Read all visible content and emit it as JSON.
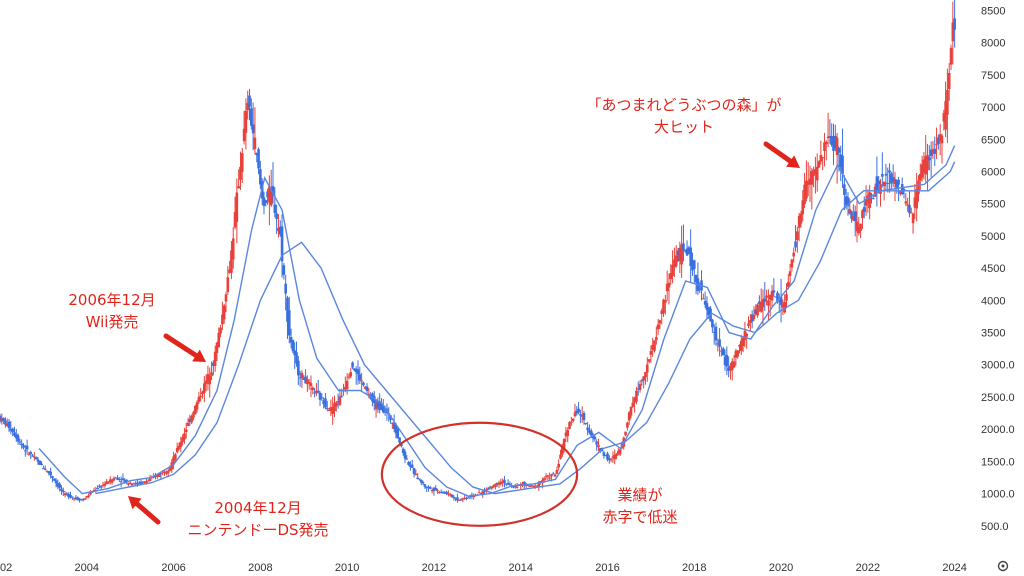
{
  "chart_data": {
    "type": "candlestick",
    "title": "",
    "xlabel": "",
    "ylabel": "",
    "x_ticks": [
      "02",
      "2004",
      "2006",
      "2008",
      "2010",
      "2012",
      "2014",
      "2016",
      "2018",
      "2020",
      "2022",
      "2024"
    ],
    "y_ticks": [
      "500.0",
      "1000.0",
      "1500.0",
      "2000.0",
      "2500.0",
      "3000.0",
      "3500",
      "4000",
      "4500",
      "5000",
      "5500",
      "6000",
      "6500",
      "7000",
      "7500",
      "8000",
      "8500"
    ],
    "ylim": [
      0,
      8600
    ],
    "xlim": [
      2002.0,
      2024.4
    ],
    "grid": false,
    "colors": {
      "up": "#e8413b",
      "down": "#3a6fe0",
      "ma": "#5b86e0",
      "annotation": "#e0241b"
    },
    "close_path": [
      [
        2002.0,
        2200
      ],
      [
        2002.3,
        2000
      ],
      [
        2002.6,
        1700
      ],
      [
        2002.9,
        1500
      ],
      [
        2003.2,
        1300
      ],
      [
        2003.5,
        1000
      ],
      [
        2003.75,
        930
      ],
      [
        2003.95,
        900
      ],
      [
        2004.2,
        1050
      ],
      [
        2004.45,
        1150
      ],
      [
        2004.7,
        1250
      ],
      [
        2004.95,
        1180
      ],
      [
        2005.2,
        1150
      ],
      [
        2005.45,
        1200
      ],
      [
        2005.7,
        1300
      ],
      [
        2005.95,
        1400
      ],
      [
        2006.2,
        1800
      ],
      [
        2006.45,
        2200
      ],
      [
        2006.7,
        2600
      ],
      [
        2006.95,
        3000
      ],
      [
        2007.15,
        3700
      ],
      [
        2007.35,
        4600
      ],
      [
        2007.55,
        5900
      ],
      [
        2007.75,
        7100
      ],
      [
        2007.9,
        6500
      ],
      [
        2008.1,
        5500
      ],
      [
        2008.3,
        5700
      ],
      [
        2008.5,
        5000
      ],
      [
        2008.7,
        3500
      ],
      [
        2008.9,
        2900
      ],
      [
        2009.15,
        2700
      ],
      [
        2009.4,
        2500
      ],
      [
        2009.65,
        2300
      ],
      [
        2009.9,
        2500
      ],
      [
        2010.15,
        3000
      ],
      [
        2010.4,
        2700
      ],
      [
        2010.65,
        2400
      ],
      [
        2010.9,
        2300
      ],
      [
        2011.1,
        2100
      ],
      [
        2011.35,
        1600
      ],
      [
        2011.6,
        1300
      ],
      [
        2011.85,
        1100
      ],
      [
        2012.1,
        1050
      ],
      [
        2012.35,
        1000
      ],
      [
        2012.6,
        900
      ],
      [
        2012.85,
        950
      ],
      [
        2013.1,
        1000
      ],
      [
        2013.35,
        1100
      ],
      [
        2013.6,
        1200
      ],
      [
        2013.85,
        1100
      ],
      [
        2014.1,
        1150
      ],
      [
        2014.35,
        1100
      ],
      [
        2014.6,
        1250
      ],
      [
        2014.85,
        1300
      ],
      [
        2015.1,
        2000
      ],
      [
        2015.35,
        2300
      ],
      [
        2015.6,
        2000
      ],
      [
        2015.85,
        1700
      ],
      [
        2016.1,
        1500
      ],
      [
        2016.35,
        1700
      ],
      [
        2016.6,
        2400
      ],
      [
        2016.85,
        2800
      ],
      [
        2017.1,
        3300
      ],
      [
        2017.35,
        4000
      ],
      [
        2017.6,
        4700
      ],
      [
        2017.85,
        4800
      ],
      [
        2018.1,
        4300
      ],
      [
        2018.35,
        3800
      ],
      [
        2018.6,
        3300
      ],
      [
        2018.85,
        2900
      ],
      [
        2019.1,
        3300
      ],
      [
        2019.35,
        3700
      ],
      [
        2019.6,
        4000
      ],
      [
        2019.85,
        4100
      ],
      [
        2020.1,
        3900
      ],
      [
        2020.35,
        4800
      ],
      [
        2020.6,
        5800
      ],
      [
        2020.85,
        6000
      ],
      [
        2021.1,
        6500
      ],
      [
        2021.35,
        6400
      ],
      [
        2021.55,
        5500
      ],
      [
        2021.8,
        5100
      ],
      [
        2022.05,
        5600
      ],
      [
        2022.3,
        5800
      ],
      [
        2022.55,
        5900
      ],
      [
        2022.8,
        5700
      ],
      [
        2023.05,
        5300
      ],
      [
        2023.3,
        6100
      ],
      [
        2023.55,
        6300
      ],
      [
        2023.75,
        6600
      ],
      [
        2023.9,
        7300
      ],
      [
        2024.0,
        8200
      ]
    ],
    "moving_average_short": [
      [
        2002.9,
        1700
      ],
      [
        2003.5,
        1250
      ],
      [
        2003.9,
        1000
      ],
      [
        2004.5,
        1080
      ],
      [
        2005.0,
        1200
      ],
      [
        2005.5,
        1250
      ],
      [
        2006.0,
        1450
      ],
      [
        2006.5,
        1900
      ],
      [
        2007.0,
        2600
      ],
      [
        2007.4,
        3700
      ],
      [
        2007.8,
        5100
      ],
      [
        2008.1,
        5900
      ],
      [
        2008.5,
        5400
      ],
      [
        2008.9,
        4000
      ],
      [
        2009.3,
        3100
      ],
      [
        2009.8,
        2600
      ],
      [
        2010.3,
        2600
      ],
      [
        2010.8,
        2400
      ],
      [
        2011.3,
        1900
      ],
      [
        2011.8,
        1400
      ],
      [
        2012.3,
        1100
      ],
      [
        2012.8,
        960
      ],
      [
        2013.3,
        1000
      ],
      [
        2013.8,
        1120
      ],
      [
        2014.3,
        1150
      ],
      [
        2014.8,
        1220
      ],
      [
        2015.3,
        1750
      ],
      [
        2015.8,
        1950
      ],
      [
        2016.3,
        1700
      ],
      [
        2016.8,
        2300
      ],
      [
        2017.3,
        3400
      ],
      [
        2017.8,
        4300
      ],
      [
        2018.3,
        4200
      ],
      [
        2018.8,
        3500
      ],
      [
        2019.3,
        3400
      ],
      [
        2019.8,
        3900
      ],
      [
        2020.3,
        4300
      ],
      [
        2020.8,
        5400
      ],
      [
        2021.3,
        6100
      ],
      [
        2021.8,
        5500
      ],
      [
        2022.3,
        5700
      ],
      [
        2022.8,
        5750
      ],
      [
        2023.3,
        5800
      ],
      [
        2023.8,
        6100
      ],
      [
        2024.0,
        6400
      ]
    ],
    "moving_average_long": [
      [
        2004.2,
        1000
      ],
      [
        2004.8,
        1080
      ],
      [
        2005.5,
        1170
      ],
      [
        2006.0,
        1300
      ],
      [
        2006.5,
        1600
      ],
      [
        2007.0,
        2100
      ],
      [
        2007.5,
        3000
      ],
      [
        2008.0,
        4000
      ],
      [
        2008.5,
        4700
      ],
      [
        2008.95,
        4900
      ],
      [
        2009.4,
        4500
      ],
      [
        2009.9,
        3700
      ],
      [
        2010.4,
        3000
      ],
      [
        2010.9,
        2600
      ],
      [
        2011.4,
        2200
      ],
      [
        2011.9,
        1800
      ],
      [
        2012.4,
        1400
      ],
      [
        2012.9,
        1100
      ],
      [
        2013.4,
        1000
      ],
      [
        2013.9,
        1050
      ],
      [
        2014.4,
        1100
      ],
      [
        2014.9,
        1150
      ],
      [
        2015.4,
        1400
      ],
      [
        2015.9,
        1700
      ],
      [
        2016.4,
        1800
      ],
      [
        2016.9,
        2100
      ],
      [
        2017.4,
        2700
      ],
      [
        2017.9,
        3400
      ],
      [
        2018.4,
        3800
      ],
      [
        2018.9,
        3600
      ],
      [
        2019.4,
        3500
      ],
      [
        2019.9,
        3800
      ],
      [
        2020.4,
        4000
      ],
      [
        2020.9,
        4600
      ],
      [
        2021.4,
        5400
      ],
      [
        2021.9,
        5700
      ],
      [
        2022.4,
        5700
      ],
      [
        2022.9,
        5700
      ],
      [
        2023.4,
        5700
      ],
      [
        2023.9,
        6000
      ],
      [
        2024.0,
        6150
      ]
    ],
    "annotations": [
      {
        "lines": [
          "2006年12月",
          "Wii発売"
        ],
        "x": 2006.9,
        "y": 3050
      },
      {
        "lines": [
          "2004年12月",
          "ニンテンドーDS発売"
        ],
        "x": 2004.95,
        "y": 1050
      },
      {
        "lines": [
          "「あつまれどうぶつの森」が",
          "大ヒット"
        ],
        "x": 2020.4,
        "y": 6100
      },
      {
        "lines": [
          "業績が",
          "赤字で低迷"
        ],
        "x": 2015.2,
        "y": 1100
      }
    ],
    "highlight_ellipse": {
      "x_center": 2013.05,
      "y_center": 1300,
      "x_range": [
        2010.8,
        2015.3
      ],
      "y_range": [
        500,
        2100
      ]
    }
  }
}
